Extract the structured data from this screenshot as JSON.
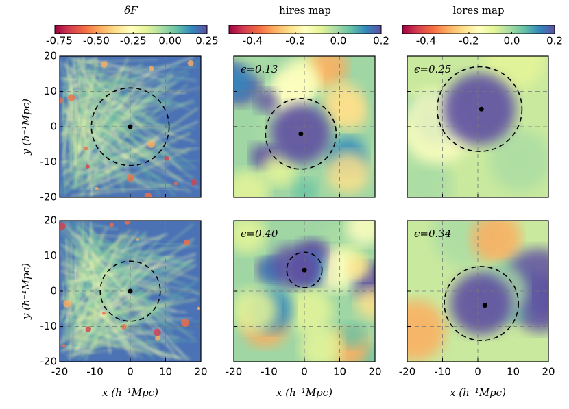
{
  "chart_data": [
    {
      "type": "heatmap",
      "colorbar": {
        "title": "δF",
        "lim": [
          -0.78,
          0.25
        ],
        "ticks": [
          -0.75,
          {
            "value": -0.5,
            "label": "-0.50"
          },
          -0.25,
          {
            "value": 0,
            "label": "0.00"
          },
          0.25
        ]
      },
      "xlim": [
        -20,
        20
      ],
      "ylim": [
        -20,
        20
      ],
      "xticks": [
        -20,
        -10,
        0,
        10,
        20
      ],
      "yticks": [
        -20,
        -10,
        0,
        10,
        20
      ],
      "ylabel": "y  (h⁻¹Mpc)",
      "circle": {
        "x": 0,
        "y": 0,
        "r": 11
      },
      "point": {
        "x": 0,
        "y": 0
      }
    },
    {
      "type": "heatmap",
      "colorbar": {
        "title": "hires  map",
        "lim": [
          -0.51,
          0.2
        ],
        "ticks": [
          -0.4,
          -0.2,
          {
            "value": 0,
            "label": "0.0"
          },
          0.2
        ]
      },
      "xlim": [
        -20,
        20
      ],
      "ylim": [
        -20,
        20
      ],
      "xticks": [
        -20,
        -10,
        0,
        10,
        20
      ],
      "yticks": [
        -20,
        -10,
        0,
        10,
        20
      ],
      "label": "ϵ=0.13",
      "circle": {
        "x": -1,
        "y": -2,
        "r": 10
      },
      "point": {
        "x": -1,
        "y": -2
      }
    },
    {
      "type": "heatmap",
      "colorbar": {
        "title": "lores  map",
        "lim": [
          -0.51,
          0.2
        ],
        "ticks": [
          -0.4,
          -0.2,
          {
            "value": 0,
            "label": "0.0"
          },
          0.2
        ]
      },
      "xlim": [
        -20,
        20
      ],
      "ylim": [
        -20,
        20
      ],
      "xticks": [
        -20,
        -10,
        0,
        10,
        20
      ],
      "yticks": [
        -20,
        -10,
        0,
        10,
        20
      ],
      "label": "ϵ=0.25",
      "circle": {
        "x": 0.5,
        "y": 5,
        "r": 12
      },
      "point": {
        "x": 1,
        "y": 5
      }
    },
    {
      "type": "heatmap",
      "xlim": [
        -20,
        20
      ],
      "ylim": [
        -20,
        20
      ],
      "xticks": [
        -20,
        -10,
        0,
        10,
        20
      ],
      "yticks": [
        -20,
        -10,
        0,
        10,
        20
      ],
      "xlabel": "x  (h⁻¹Mpc)",
      "ylabel": "y  (h⁻¹Mpc)",
      "circle": {
        "x": 0,
        "y": 0,
        "r": 8.5
      },
      "point": {
        "x": 0,
        "y": 0
      }
    },
    {
      "type": "heatmap",
      "xlim": [
        -20,
        20
      ],
      "ylim": [
        -20,
        20
      ],
      "xticks": [
        -20,
        -10,
        0,
        10,
        20
      ],
      "yticks": [
        -20,
        -10,
        0,
        10,
        20
      ],
      "xlabel": "x  (h⁻¹Mpc)",
      "label": "ϵ=0.40",
      "circle": {
        "x": 0,
        "y": 6,
        "r": 5
      },
      "point": {
        "x": 0,
        "y": 6
      }
    },
    {
      "type": "heatmap",
      "xlim": [
        -20,
        20
      ],
      "ylim": [
        -20,
        20
      ],
      "xticks": [
        -20,
        -10,
        0,
        10,
        20
      ],
      "yticks": [
        -20,
        -10,
        0,
        10,
        20
      ],
      "xlabel": "x  (h⁻¹Mpc)",
      "label": "ϵ=0.34",
      "circle": {
        "x": 1,
        "y": -3.5,
        "r": 10.5
      },
      "point": {
        "x": 2,
        "y": -4
      }
    }
  ]
}
